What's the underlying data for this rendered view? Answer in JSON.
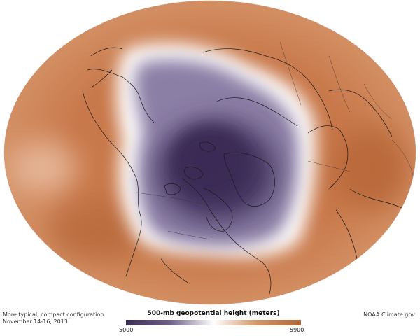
{
  "caption": {
    "line1": "More typical, compact configuration",
    "line2": "November 14-16, 2013"
  },
  "credit": "NOAA Climate.gov",
  "legend": {
    "title": "500-mb geopotential height (meters)",
    "min_label": "5000",
    "max_label": "5900",
    "colors": [
      "#3c2d57",
      "#6d5f86",
      "#ffffff",
      "#d49468",
      "#b56634"
    ]
  }
}
